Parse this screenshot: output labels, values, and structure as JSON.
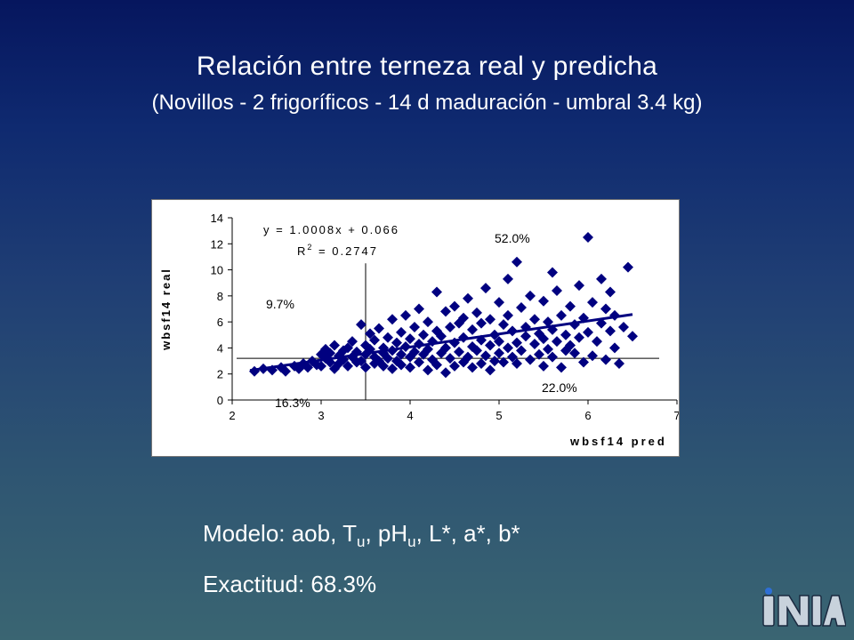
{
  "slide": {
    "title": "Relación entre terneza real y predicha",
    "subtitle": "(Novillos - 2 frigoríficos - 14 d maduración - umbral 3.4 kg)",
    "model_prefix": "Modelo: aob, T",
    "model_sub_u1": "u",
    "model_mid": ", pH",
    "model_sub_u2": "u",
    "model_suffix": ", L*, a*, b*",
    "accuracy": "Exactitud: 68.3%",
    "logo": {
      "letters": "INIA",
      "icon": "inia-logo"
    }
  },
  "colors": {
    "points": "#000080",
    "title_text": "#ffffff"
  },
  "chart_data": {
    "type": "scatter",
    "xlabel": "wbsf14 pred",
    "ylabel": "wbsf14 real",
    "xlim": [
      2,
      7
    ],
    "ylim": [
      0,
      14
    ],
    "xticks": [
      2,
      3,
      4,
      5,
      6,
      7
    ],
    "yticks": [
      0,
      2,
      4,
      6,
      8,
      10,
      12,
      14
    ],
    "grid": false,
    "regression": {
      "equation": "y = 1.0008x + 0.066",
      "r2_label": "R",
      "r2_sup": "2",
      "r2_value": " = 0.2747",
      "slope": 1.0008,
      "intercept": 0.066,
      "x_range": [
        2.2,
        6.5
      ]
    },
    "thresholds": {
      "x": 3.5,
      "y": 3.2
    },
    "quadrant_labels": [
      {
        "text": "52.0%",
        "x": 5.9,
        "y": 12.5
      },
      {
        "text": "9.7%",
        "x": 2.4,
        "y": 7.2
      },
      {
        "text": "16.3%",
        "x": 2.5,
        "y": -0.4
      },
      {
        "text": "22.0%",
        "x": 5.5,
        "y": 0.8
      }
    ],
    "series": [
      {
        "points": [
          [
            2.25,
            2.2
          ],
          [
            2.35,
            2.4
          ],
          [
            2.45,
            2.3
          ],
          [
            2.55,
            2.5
          ],
          [
            2.6,
            2.2
          ],
          [
            2.7,
            2.6
          ],
          [
            2.75,
            2.4
          ],
          [
            2.8,
            2.8
          ],
          [
            2.85,
            2.5
          ],
          [
            2.9,
            3.0
          ],
          [
            2.95,
            2.7
          ],
          [
            3.0,
            3.5
          ],
          [
            3.0,
            2.6
          ],
          [
            3.05,
            3.9
          ],
          [
            3.05,
            3.2
          ],
          [
            3.1,
            2.9
          ],
          [
            3.1,
            3.6
          ],
          [
            3.15,
            2.4
          ],
          [
            3.15,
            4.2
          ],
          [
            3.2,
            3.4
          ],
          [
            3.2,
            2.8
          ],
          [
            3.25,
            3.8
          ],
          [
            3.25,
            3.1
          ],
          [
            3.3,
            4.0
          ],
          [
            3.3,
            2.6
          ],
          [
            3.35,
            3.3
          ],
          [
            3.35,
            4.5
          ],
          [
            3.4,
            2.9
          ],
          [
            3.4,
            3.7
          ],
          [
            3.45,
            5.8
          ],
          [
            3.45,
            3.0
          ],
          [
            3.5,
            4.2
          ],
          [
            3.5,
            2.5
          ],
          [
            3.5,
            3.5
          ],
          [
            3.55,
            5.1
          ],
          [
            3.55,
            3.9
          ],
          [
            3.6,
            2.8
          ],
          [
            3.6,
            4.6
          ],
          [
            3.6,
            3.3
          ],
          [
            3.65,
            5.5
          ],
          [
            3.65,
            3.0
          ],
          [
            3.7,
            4.0
          ],
          [
            3.7,
            2.6
          ],
          [
            3.7,
            3.6
          ],
          [
            3.75,
            4.8
          ],
          [
            3.75,
            3.2
          ],
          [
            3.8,
            6.2
          ],
          [
            3.8,
            2.4
          ],
          [
            3.8,
            3.8
          ],
          [
            3.85,
            4.4
          ],
          [
            3.85,
            3.0
          ],
          [
            3.9,
            5.2
          ],
          [
            3.9,
            2.7
          ],
          [
            3.9,
            3.5
          ],
          [
            3.95,
            4.1
          ],
          [
            3.95,
            6.5
          ],
          [
            4.0,
            3.3
          ],
          [
            4.0,
            2.5
          ],
          [
            4.0,
            4.7
          ],
          [
            4.05,
            5.6
          ],
          [
            4.05,
            3.7
          ],
          [
            4.1,
            2.9
          ],
          [
            4.1,
            4.3
          ],
          [
            4.1,
            7.0
          ],
          [
            4.15,
            3.5
          ],
          [
            4.15,
            5.0
          ],
          [
            4.2,
            2.3
          ],
          [
            4.2,
            3.9
          ],
          [
            4.2,
            6.0
          ],
          [
            4.25,
            4.5
          ],
          [
            4.25,
            3.1
          ],
          [
            4.3,
            5.3
          ],
          [
            4.3,
            2.7
          ],
          [
            4.3,
            8.3
          ],
          [
            4.35,
            3.6
          ],
          [
            4.35,
            4.9
          ],
          [
            4.4,
            2.1
          ],
          [
            4.4,
            4.0
          ],
          [
            4.4,
            6.8
          ],
          [
            4.45,
            3.2
          ],
          [
            4.45,
            5.6
          ],
          [
            4.5,
            2.6
          ],
          [
            4.5,
            4.4
          ],
          [
            4.5,
            7.2
          ],
          [
            4.55,
            3.7
          ],
          [
            4.55,
            5.9
          ],
          [
            4.6,
            2.9
          ],
          [
            4.6,
            4.8
          ],
          [
            4.6,
            6.3
          ],
          [
            4.65,
            3.3
          ],
          [
            4.65,
            7.8
          ],
          [
            4.7,
            4.1
          ],
          [
            4.7,
            2.5
          ],
          [
            4.7,
            5.4
          ],
          [
            4.75,
            3.8
          ],
          [
            4.75,
            6.7
          ],
          [
            4.8,
            2.8
          ],
          [
            4.8,
            4.6
          ],
          [
            4.8,
            5.9
          ],
          [
            4.85,
            3.4
          ],
          [
            4.85,
            8.6
          ],
          [
            4.9,
            4.2
          ],
          [
            4.9,
            2.3
          ],
          [
            4.9,
            6.2
          ],
          [
            4.95,
            3.0
          ],
          [
            4.95,
            5.0
          ],
          [
            5.0,
            4.5
          ],
          [
            5.0,
            7.5
          ],
          [
            5.0,
            3.6
          ],
          [
            5.05,
            5.8
          ],
          [
            5.05,
            2.9
          ],
          [
            5.1,
            9.3
          ],
          [
            5.1,
            4.0
          ],
          [
            5.1,
            6.5
          ],
          [
            5.15,
            3.3
          ],
          [
            5.15,
            5.3
          ],
          [
            5.2,
            10.6
          ],
          [
            5.2,
            4.4
          ],
          [
            5.2,
            2.8
          ],
          [
            5.25,
            7.1
          ],
          [
            5.25,
            3.8
          ],
          [
            5.3,
            5.6
          ],
          [
            5.3,
            4.9
          ],
          [
            5.35,
            3.1
          ],
          [
            5.35,
            8.0
          ],
          [
            5.4,
            4.3
          ],
          [
            5.4,
            6.2
          ],
          [
            5.45,
            3.5
          ],
          [
            5.45,
            5.1
          ],
          [
            5.5,
            2.6
          ],
          [
            5.5,
            7.6
          ],
          [
            5.5,
            4.7
          ],
          [
            5.55,
            3.9
          ],
          [
            5.55,
            6.0
          ],
          [
            5.6,
            9.8
          ],
          [
            5.6,
            3.3
          ],
          [
            5.6,
            5.4
          ],
          [
            5.65,
            4.5
          ],
          [
            5.65,
            8.4
          ],
          [
            5.7,
            2.5
          ],
          [
            5.7,
            6.5
          ],
          [
            5.75,
            3.8
          ],
          [
            5.75,
            5.0
          ],
          [
            5.8,
            7.2
          ],
          [
            5.8,
            4.2
          ],
          [
            5.85,
            3.6
          ],
          [
            5.85,
            5.8
          ],
          [
            5.9,
            8.8
          ],
          [
            5.9,
            4.8
          ],
          [
            5.95,
            2.9
          ],
          [
            5.95,
            6.3
          ],
          [
            6.0,
            12.5
          ],
          [
            6.0,
            5.2
          ],
          [
            6.05,
            3.4
          ],
          [
            6.05,
            7.5
          ],
          [
            6.1,
            4.5
          ],
          [
            6.15,
            9.3
          ],
          [
            6.15,
            5.9
          ],
          [
            6.2,
            3.1
          ],
          [
            6.2,
            7.0
          ],
          [
            6.25,
            5.3
          ],
          [
            6.25,
            8.3
          ],
          [
            6.3,
            4.0
          ],
          [
            6.3,
            6.5
          ],
          [
            6.35,
            2.8
          ],
          [
            6.4,
            5.6
          ],
          [
            6.45,
            10.2
          ],
          [
            6.5,
            4.9
          ]
        ]
      }
    ]
  }
}
